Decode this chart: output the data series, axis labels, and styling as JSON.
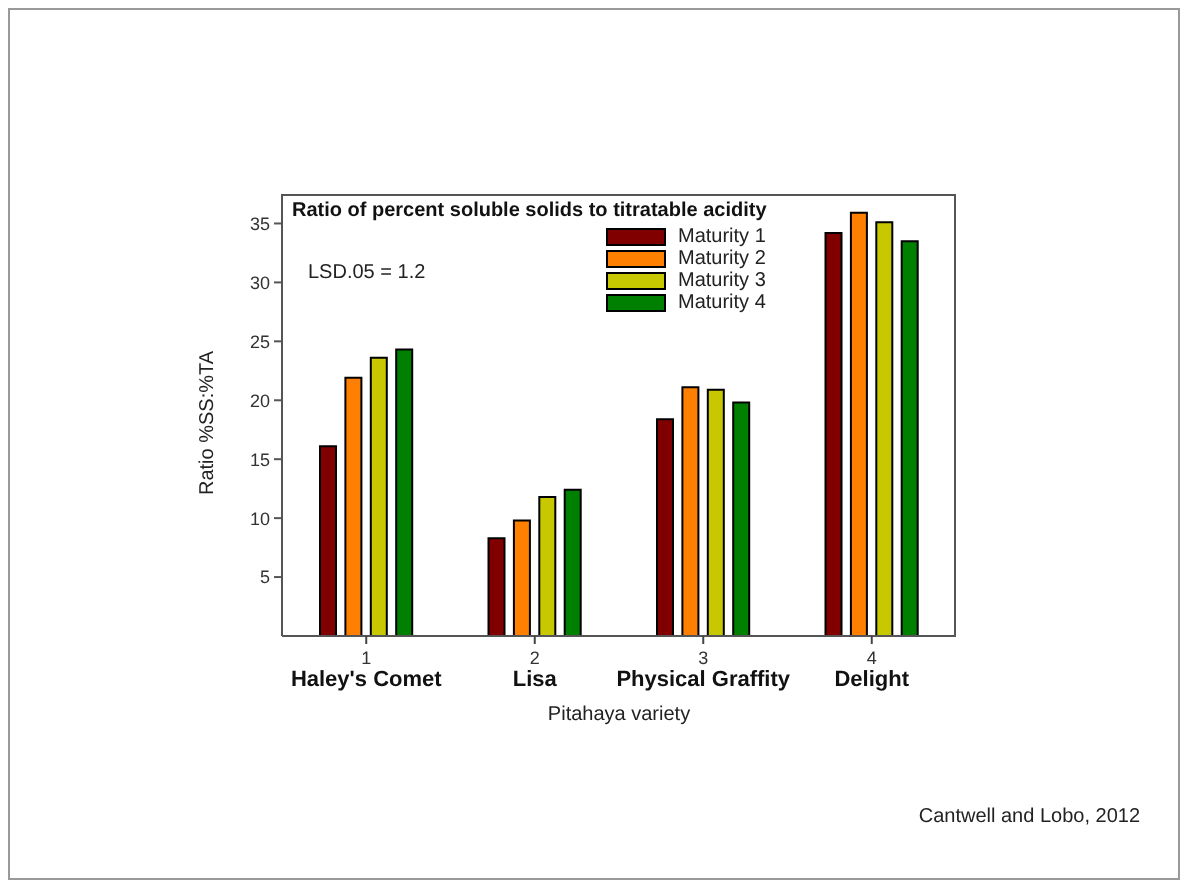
{
  "chart_data": {
    "type": "bar",
    "title": "Ratio of percent soluble solids to titratable acidity",
    "xlabel": "Pitahaya variety",
    "ylabel": "Ratio %SS:%TA",
    "x": [
      1,
      2,
      3,
      4
    ],
    "xlim": [
      0.5,
      4.5
    ],
    "xticks": [
      1,
      2,
      3,
      4
    ],
    "ylim": [
      0,
      37.5
    ],
    "yticks": [
      5,
      10,
      15,
      20,
      25,
      30,
      35
    ],
    "series": [
      {
        "name": "Maturity 1",
        "color": "#800000",
        "values": [
          16.1,
          8.3,
          18.4,
          34.2
        ]
      },
      {
        "name": "Maturity 2",
        "color": "#ff8000",
        "values": [
          21.9,
          9.8,
          21.1,
          35.9
        ]
      },
      {
        "name": "Maturity 3",
        "color": "#c8c800",
        "values": [
          23.6,
          11.8,
          20.9,
          35.1
        ]
      },
      {
        "name": "Maturity 4",
        "color": "#008000",
        "values": [
          24.3,
          12.4,
          19.8,
          33.5
        ]
      }
    ],
    "annotations": [
      "Haley's Comet",
      "Lisa",
      "Physical Graffity",
      "Delight",
      "LSD.05 = 1.2",
      "Cantwell and Lobo, 2012"
    ],
    "legend": "top right",
    "grid": false
  }
}
